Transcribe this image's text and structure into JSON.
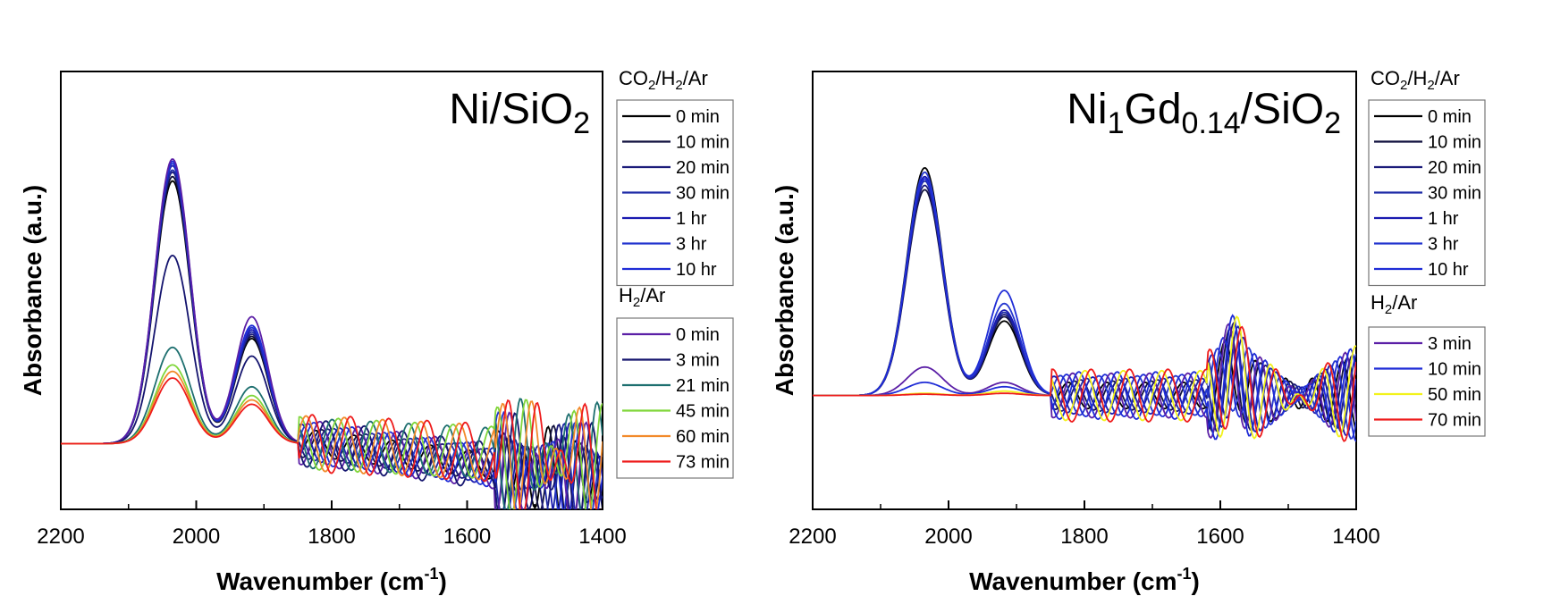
{
  "chart_data": [
    {
      "type": "line",
      "title": "Ni/SiO",
      "title_sub": "2",
      "xlabel": "Wavenumber (cm",
      "xlabel_sup": "-1",
      "xlabel_end": ")",
      "ylabel": "Absorbance (a.u.)",
      "xlim": [
        2200,
        1400
      ],
      "ylim": [
        0,
        100
      ],
      "xticks": [
        "2200",
        "2000",
        "1800",
        "1600",
        "1400"
      ],
      "legend_groups": [
        {
          "head_parts": [
            [
              "CO",
              false
            ],
            [
              "2",
              true
            ],
            [
              "/H",
              false
            ],
            [
              "2",
              true
            ],
            [
              "/Ar",
              false
            ]
          ],
          "series": [
            {
              "name": "0 min",
              "color": "#000000",
              "peak": 60.0,
              "second": 24,
              "offset": 0
            },
            {
              "name": "10 min",
              "color": "#12123f",
              "peak": 61.0,
              "second": 24.5,
              "offset": 1
            },
            {
              "name": "20 min",
              "color": "#1b1b7a",
              "peak": 62.0,
              "second": 25,
              "offset": 2
            },
            {
              "name": "30 min",
              "color": "#1d2aa6",
              "peak": 62.5,
              "second": 25.5,
              "offset": 3
            },
            {
              "name": "1 hr",
              "color": "#1a1ab0",
              "peak": 63.5,
              "second": 26,
              "offset": 4
            },
            {
              "name": "3 hr",
              "color": "#2436cf",
              "peak": 64.0,
              "second": 26.5,
              "offset": 5
            },
            {
              "name": "10 hr",
              "color": "#1f2cd6",
              "peak": 64.5,
              "second": 27,
              "offset": 6
            }
          ]
        },
        {
          "head_parts": [
            [
              "H",
              false
            ],
            [
              "2",
              true
            ],
            [
              "/Ar",
              false
            ]
          ],
          "series": [
            {
              "name": "0 min",
              "color": "#5b1fa6",
              "peak": 65.0,
              "second": 29,
              "offset": 7
            },
            {
              "name": "3 min",
              "color": "#14146e",
              "peak": 43.0,
              "second": 20,
              "offset": 8
            },
            {
              "name": "21 min",
              "color": "#1d6f6f",
              "peak": 22.0,
              "second": 13,
              "offset": 9
            },
            {
              "name": "45 min",
              "color": "#80d63a",
              "peak": 18.0,
              "second": 11,
              "offset": 10
            },
            {
              "name": "60 min",
              "color": "#f28a2a",
              "peak": 16.5,
              "second": 10,
              "offset": 11
            },
            {
              "name": "73 min",
              "color": "#ee1c1c",
              "peak": 15.0,
              "second": 9,
              "offset": 12
            }
          ]
        }
      ]
    },
    {
      "type": "line",
      "title": "Ni",
      "title_parts": [
        [
          "Ni",
          false
        ],
        [
          "1",
          true
        ],
        [
          "Gd",
          false
        ],
        [
          "0.14",
          true
        ],
        [
          "/SiO",
          false
        ],
        [
          "2",
          true
        ]
      ],
      "xlabel": "Wavenumber (cm",
      "xlabel_sup": "-1",
      "xlabel_end": ")",
      "ylabel": "Absorbance (a.u.)",
      "xlim": [
        2200,
        1400
      ],
      "ylim": [
        0,
        100
      ],
      "xticks": [
        "2200",
        "2000",
        "1800",
        "1600",
        "1400"
      ],
      "legend_groups": [
        {
          "head_parts": [
            [
              "CO",
              false
            ],
            [
              "2",
              true
            ],
            [
              "/H",
              false
            ],
            [
              "2",
              true
            ],
            [
              "/Ar",
              false
            ]
          ],
          "series": [
            {
              "name": "0 min",
              "color": "#000000",
              "peak": 52.0,
              "second": 17,
              "offset": 0
            },
            {
              "name": "10 min",
              "color": "#12123f",
              "peak": 47.0,
              "second": 18,
              "offset": 1
            },
            {
              "name": "20 min",
              "color": "#1b1b7a",
              "peak": 48.0,
              "second": 18.5,
              "offset": 2
            },
            {
              "name": "30 min",
              "color": "#1d2aa6",
              "peak": 49.0,
              "second": 19,
              "offset": 3
            },
            {
              "name": "1 hr",
              "color": "#1a1ab0",
              "peak": 50.0,
              "second": 19.5,
              "offset": 4
            },
            {
              "name": "3 hr",
              "color": "#2436cf",
              "peak": 51.0,
              "second": 21,
              "offset": 5
            },
            {
              "name": "10 hr",
              "color": "#1f2cd6",
              "peak": 49.5,
              "second": 24,
              "offset": 6
            }
          ]
        },
        {
          "head_parts": [
            [
              "H",
              false
            ],
            [
              "2",
              true
            ],
            [
              "/Ar",
              false
            ]
          ],
          "series": [
            {
              "name": "3 min",
              "color": "#5b1fa6",
              "peak": 6.5,
              "second": 3,
              "offset": 7
            },
            {
              "name": "10 min",
              "color": "#1f2cd6",
              "peak": 3.0,
              "second": 2,
              "offset": 8
            },
            {
              "name": "50 min",
              "color": "#f2f21a",
              "peak": 0.5,
              "second": 1,
              "offset": 9
            },
            {
              "name": "70 min",
              "color": "#ee1c1c",
              "peak": 0.3,
              "second": 0.5,
              "offset": 10
            }
          ]
        }
      ]
    }
  ]
}
